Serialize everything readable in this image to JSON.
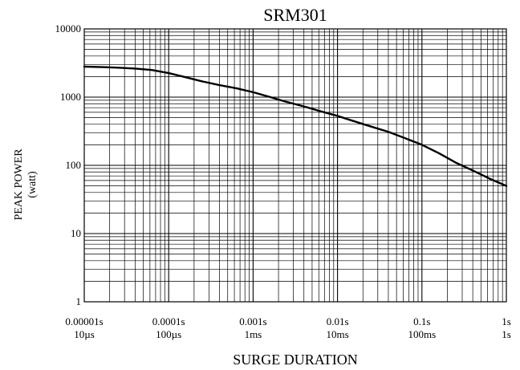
{
  "chart_data": {
    "type": "line",
    "title": "SRM301",
    "xlabel": "SURGE DURATION",
    "ylabel": [
      "PEAK POWER",
      "(watt)"
    ],
    "x_scale": "log",
    "y_scale": "log",
    "xlim": [
      1e-05,
      1
    ],
    "ylim": [
      1,
      10000
    ],
    "grid": true,
    "x_ticks": [
      {
        "value": 1e-05,
        "label1": "0.00001s",
        "label2": "10µs"
      },
      {
        "value": 0.0001,
        "label1": "0.0001s",
        "label2": "100µs"
      },
      {
        "value": 0.001,
        "label1": "0.001s",
        "label2": "1ms"
      },
      {
        "value": 0.01,
        "label1": "0.01s",
        "label2": "10ms"
      },
      {
        "value": 0.1,
        "label1": "0.1s",
        "label2": "100ms"
      },
      {
        "value": 1,
        "label1": "1s",
        "label2": "1s"
      }
    ],
    "y_ticks": [
      {
        "value": 1,
        "label": "1"
      },
      {
        "value": 10,
        "label": "10"
      },
      {
        "value": 100,
        "label": "100"
      },
      {
        "value": 1000,
        "label": "1000"
      },
      {
        "value": 10000,
        "label": "10000"
      }
    ],
    "series": [
      {
        "color": "#000000",
        "x": [
          1e-05,
          1.6e-05,
          2.5e-05,
          4e-05,
          6.3e-05,
          0.0001,
          0.00016,
          0.00025,
          0.0004,
          0.00063,
          0.001,
          0.0016,
          0.0025,
          0.004,
          0.0063,
          0.01,
          0.016,
          0.025,
          0.04,
          0.063,
          0.1,
          0.16,
          0.25,
          0.4,
          0.63,
          1
        ],
        "y": [
          2800,
          2760,
          2700,
          2620,
          2500,
          2250,
          1950,
          1700,
          1500,
          1350,
          1180,
          1000,
          850,
          730,
          620,
          530,
          440,
          370,
          310,
          250,
          200,
          150,
          110,
          84,
          64,
          50
        ]
      }
    ]
  }
}
